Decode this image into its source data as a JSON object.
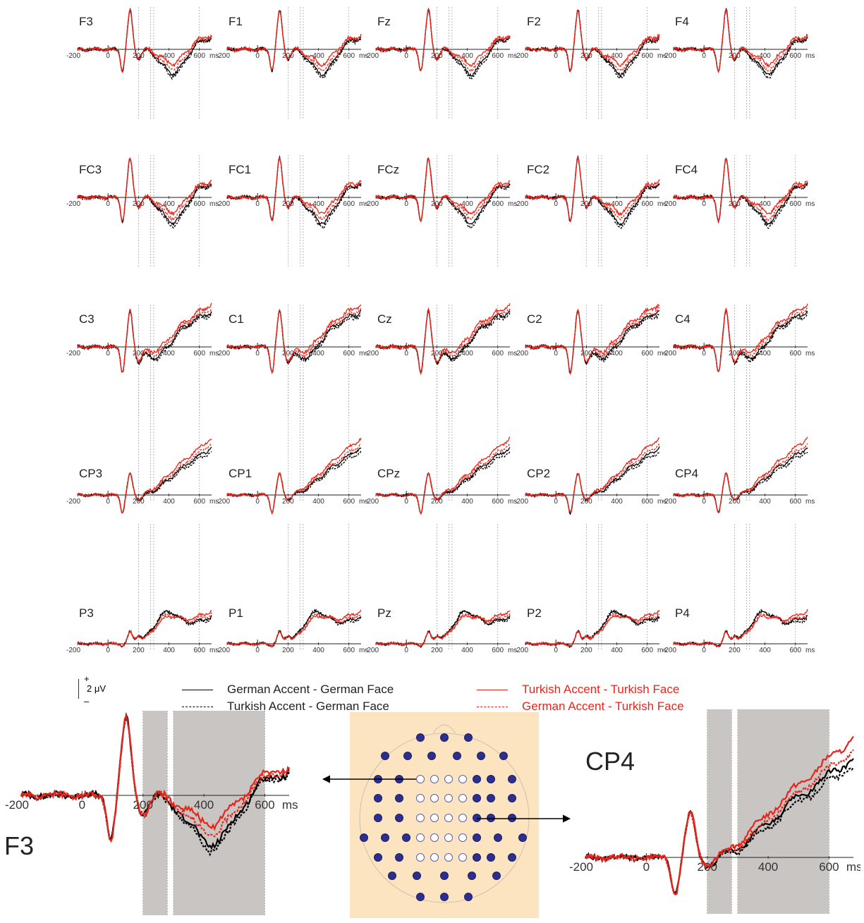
{
  "chart_data": {
    "type": "line",
    "x_unit": "ms",
    "x_ticks": [
      -200,
      0,
      200,
      400,
      600
    ],
    "x_tick_unit_label": "ms",
    "xlim": [
      -200,
      680
    ],
    "scale_bar": {
      "plus": "+",
      "minus": "–",
      "label": "2 μV"
    },
    "series": [
      {
        "name": "German Accent - German Face",
        "color": "#000000",
        "dash": "solid"
      },
      {
        "name": "Turkish Accent - German Face",
        "color": "#000000",
        "dash": "dashed"
      },
      {
        "name": "Turkish Accent - Turkish Face",
        "color": "#e8251b",
        "dash": "solid"
      },
      {
        "name": "German Accent - Turkish Face",
        "color": "#e8251b",
        "dash": "dashed"
      }
    ],
    "panels": [
      [
        "F3",
        "F1",
        "Fz",
        "F2",
        "F4"
      ],
      [
        "FC3",
        "FC1",
        "FCz",
        "FC2",
        "FC4"
      ],
      [
        "C3",
        "C1",
        "Cz",
        "C2",
        "C4"
      ],
      [
        "CP3",
        "CP1",
        "CPz",
        "CP2",
        "CP4"
      ],
      [
        "P3",
        "P1",
        "Pz",
        "P2",
        "P4"
      ]
    ],
    "time_windows": [
      {
        "start": 200,
        "end": 280
      },
      {
        "start": 300,
        "end": 600
      }
    ],
    "detail_panels": [
      "F3",
      "CP4"
    ]
  },
  "colors": {
    "black": "#000000",
    "red": "#e8251b",
    "shade": "#c9c5c3",
    "head_bg": "#fde4c1",
    "electrode": "#2c2f8f"
  }
}
